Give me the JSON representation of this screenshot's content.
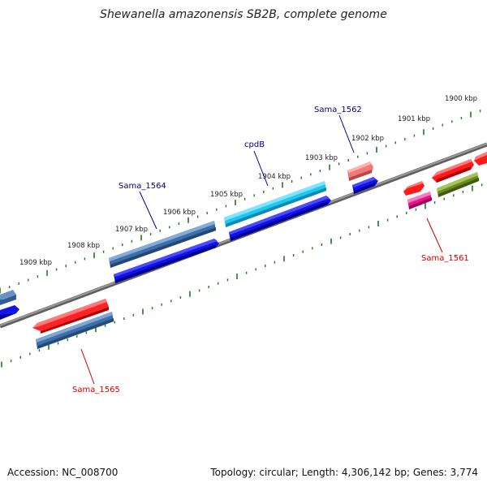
{
  "title": "Shewanella amazonensis SB2B, complete genome",
  "footer": {
    "accession": "Accession: NC_008700",
    "topology": "Topology: circular; Length: 4,306,142 bp; Genes: 3,774"
  },
  "ticks": [
    {
      "label": "1909 kbp"
    },
    {
      "label": "1908 kbp"
    },
    {
      "label": "1907 kbp"
    },
    {
      "label": "1906 kbp"
    },
    {
      "label": "1905 kbp"
    },
    {
      "label": "1904 kbp"
    },
    {
      "label": "1903 kbp"
    },
    {
      "label": "1902 kbp"
    },
    {
      "label": "1901 kbp"
    },
    {
      "label": "1900 kbp"
    }
  ],
  "gene_labels": [
    {
      "name": "Sama_1564",
      "color": "#00008b"
    },
    {
      "name": "cpdB",
      "color": "#00008b"
    },
    {
      "name": "Sama_1562",
      "color": "#00008b"
    },
    {
      "name": "Sama_1561",
      "color": "#cc0000"
    },
    {
      "name": "Sama_1565",
      "color": "#cc0000"
    }
  ],
  "colors": {
    "backbone": "#7a7a7a",
    "tick": "#1a7a1a",
    "red": "#ff1a1a",
    "blue": "#1010e0",
    "steelblue": "#3e6fa8",
    "cyan": "#1fc8f0",
    "pink": "#f07a7a",
    "magenta": "#e8148c",
    "olive": "#6b8c22"
  }
}
